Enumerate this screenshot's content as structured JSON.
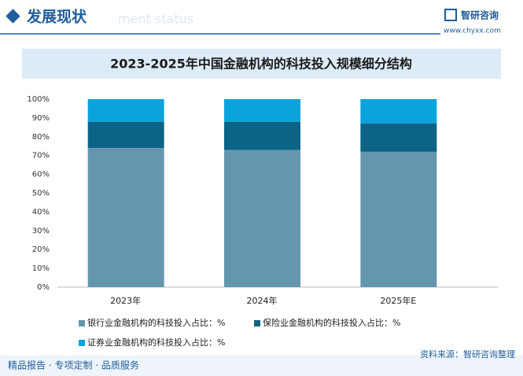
{
  "header": {
    "title": "发展现状",
    "watermark": "ment status",
    "logo": "智研咨询",
    "url": "www.chyxx.com"
  },
  "footer": {
    "slogan": "精品报告 · 专项定制 · 品质服务",
    "source": "资料来源：智研咨询整理"
  },
  "chart_data": {
    "type": "stacked-bar",
    "title": "2023-2025年中国金融机构的科技投入规模细分结构",
    "categories": [
      "2023年",
      "2024年",
      "2025年E"
    ],
    "series": [
      {
        "name": "银行业金融机构的科技投入占比：%",
        "color": "#6496ae",
        "values": [
          74,
          73,
          72
        ]
      },
      {
        "name": "保险业金融机构的科技投入占比：%",
        "color": "#0b6386",
        "values": [
          14,
          15,
          15
        ]
      },
      {
        "name": "证券业金融机构的科技投入占比：%",
        "color": "#0aa3dc",
        "values": [
          12,
          12,
          13
        ]
      }
    ],
    "ylim": [
      0,
      100
    ],
    "yticks": [
      {
        "value": 0,
        "label": "0%"
      },
      {
        "value": 10,
        "label": "10%"
      },
      {
        "value": 20,
        "label": "20%"
      },
      {
        "value": 30,
        "label": "30%"
      },
      {
        "value": 40,
        "label": "40%"
      },
      {
        "value": 50,
        "label": "50%"
      },
      {
        "value": 60,
        "label": "60%"
      },
      {
        "value": 70,
        "label": "70%"
      },
      {
        "value": 80,
        "label": "80%"
      },
      {
        "value": 90,
        "label": "90%"
      },
      {
        "value": 100,
        "label": "100%"
      }
    ]
  }
}
